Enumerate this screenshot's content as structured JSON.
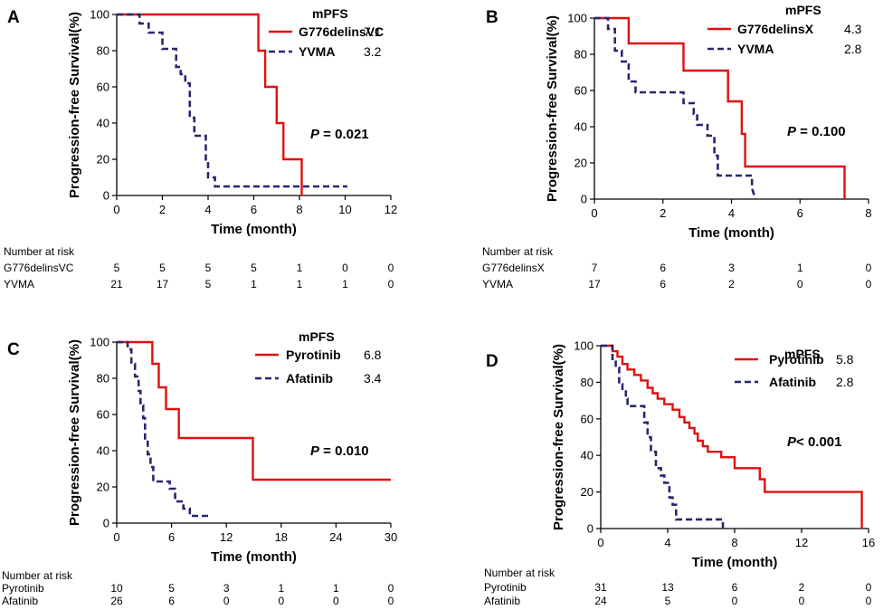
{
  "colors": {
    "red": "#e01010",
    "navy": "#27276e",
    "axis": "#000000"
  },
  "chart_data": [
    {
      "type": "line",
      "panel_label": "A",
      "xlabel": "Time (month)",
      "ylabel": "Progression-free Survival(%)",
      "xlim": [
        0,
        12
      ],
      "ylim": [
        0,
        100
      ],
      "xticks": [
        0,
        2,
        4,
        6,
        8,
        10,
        12
      ],
      "yticks": [
        0,
        20,
        40,
        60,
        80,
        100
      ],
      "legend_title": "mPFS",
      "pvalue_prefix": "P",
      "pvalue_text": " = 0.021",
      "series": [
        {
          "name": "G776delinsVC",
          "median": "7.1",
          "style": "solid",
          "color": "#e01010",
          "x": [
            0,
            6.2,
            6.2,
            6.5,
            6.5,
            7.0,
            7.0,
            7.3,
            7.3,
            8.1,
            8.1
          ],
          "y": [
            100,
            100,
            80,
            80,
            60,
            60,
            40,
            40,
            20,
            20,
            0
          ]
        },
        {
          "name": "YVMA",
          "median": "3.2",
          "style": "dashed",
          "color": "#27276e",
          "x": [
            0,
            1.0,
            1.0,
            1.4,
            1.4,
            2.0,
            2.0,
            2.6,
            2.6,
            2.8,
            2.8,
            3.0,
            3.0,
            3.2,
            3.2,
            3.4,
            3.4,
            3.9,
            3.9,
            4.0,
            4.0,
            4.3,
            4.3,
            4.6,
            4.6,
            10.1
          ],
          "y": [
            100,
            100,
            95,
            95,
            90,
            90,
            81,
            81,
            71,
            71,
            67,
            67,
            62,
            62,
            43,
            43,
            33,
            33,
            19,
            19,
            10,
            10,
            5,
            5,
            5,
            5
          ]
        }
      ],
      "risk_title": "Number at risk",
      "risk_rows": [
        {
          "name": "G776delinsVC",
          "values": [
            "5",
            "5",
            "5",
            "5",
            "1",
            "0",
            "0"
          ]
        },
        {
          "name": "YVMA",
          "values": [
            "21",
            "17",
            "5",
            "1",
            "1",
            "1",
            "0"
          ]
        }
      ]
    },
    {
      "type": "line",
      "panel_label": "B",
      "xlabel": "Time (month)",
      "ylabel": "Progression-free Survival(%)",
      "xlim": [
        0,
        8
      ],
      "ylim": [
        0,
        100
      ],
      "xticks": [
        0,
        2,
        4,
        6,
        8
      ],
      "yticks": [
        0,
        20,
        40,
        60,
        80,
        100
      ],
      "legend_title": "mPFS",
      "pvalue_prefix": "P",
      "pvalue_text": " = 0.100",
      "series": [
        {
          "name": "G776delinsX",
          "median": "4.3",
          "style": "solid",
          "color": "#e01010",
          "x": [
            0,
            1.0,
            1.0,
            2.6,
            2.6,
            3.9,
            3.9,
            4.3,
            4.3,
            4.4,
            4.4,
            7.3,
            7.3
          ],
          "y": [
            100,
            100,
            86,
            86,
            71,
            71,
            54,
            54,
            36,
            36,
            18,
            18,
            0
          ]
        },
        {
          "name": "YVMA",
          "median": "2.8",
          "style": "dashed",
          "color": "#27276e",
          "x": [
            0,
            0.4,
            0.4,
            0.6,
            0.6,
            0.8,
            0.8,
            1.0,
            1.0,
            1.2,
            1.2,
            2.6,
            2.6,
            2.9,
            2.9,
            3.0,
            3.0,
            3.3,
            3.3,
            3.5,
            3.5,
            3.6,
            3.6,
            4.6,
            4.6,
            4.7
          ],
          "y": [
            100,
            100,
            94,
            94,
            82,
            82,
            76,
            76,
            65,
            65,
            59,
            59,
            53,
            53,
            47,
            47,
            41,
            41,
            35,
            35,
            24,
            24,
            13,
            13,
            6,
            0
          ]
        }
      ],
      "risk_title": "Number at risk",
      "risk_rows": [
        {
          "name": "G776delinsX",
          "values": [
            "7",
            "6",
            "3",
            "1",
            "0"
          ]
        },
        {
          "name": "YVMA",
          "values": [
            "17",
            "6",
            "2",
            "0",
            "0"
          ]
        }
      ]
    },
    {
      "type": "line",
      "panel_label": "C",
      "xlabel": "Time (month)",
      "ylabel": "Progression-free Survival(%)",
      "xlim": [
        0,
        30
      ],
      "ylim": [
        0,
        100
      ],
      "xticks": [
        0,
        6,
        12,
        18,
        24,
        30
      ],
      "yticks": [
        0,
        20,
        40,
        60,
        80,
        100
      ],
      "legend_title": "mPFS",
      "pvalue_prefix": "P",
      "pvalue_text": " = 0.010",
      "series": [
        {
          "name": "Pyrotinib",
          "median": "6.8",
          "style": "solid",
          "color": "#e01010",
          "x": [
            0,
            3.9,
            3.9,
            4.6,
            4.6,
            5.4,
            5.4,
            6.8,
            6.8,
            14.9,
            14.9,
            30
          ],
          "y": [
            100,
            100,
            88,
            88,
            75,
            75,
            63,
            63,
            47,
            47,
            24,
            24
          ]
        },
        {
          "name": "Afatinib",
          "median": "3.4",
          "style": "dashed",
          "color": "#27276e",
          "x": [
            0,
            1.2,
            1.2,
            1.6,
            1.6,
            2.0,
            2.0,
            2.4,
            2.4,
            2.6,
            2.6,
            2.9,
            2.9,
            3.1,
            3.1,
            3.4,
            3.4,
            3.7,
            3.7,
            4.0,
            4.0,
            5.8,
            5.8,
            6.4,
            6.4,
            7.3,
            7.3,
            8.0,
            8.0,
            10.0
          ],
          "y": [
            100,
            100,
            96,
            96,
            88,
            88,
            81,
            81,
            73,
            73,
            65,
            65,
            58,
            58,
            46,
            46,
            38,
            38,
            31,
            31,
            23,
            23,
            19,
            19,
            12,
            12,
            8,
            8,
            4,
            4
          ]
        }
      ],
      "risk_title": "Number at risk",
      "risk_rows": [
        {
          "name": "Pyrotinib",
          "values": [
            "10",
            "5",
            "3",
            "1",
            "1",
            "0"
          ]
        },
        {
          "name": "Afatinib",
          "values": [
            "26",
            "6",
            "0",
            "0",
            "0",
            "0"
          ]
        }
      ]
    },
    {
      "type": "line",
      "panel_label": "D",
      "xlabel": "Time (month)",
      "ylabel": "Progression-free Survival(%)",
      "xlim": [
        0,
        16
      ],
      "ylim": [
        0,
        100
      ],
      "xticks": [
        0,
        4,
        8,
        12,
        16
      ],
      "yticks": [
        0,
        20,
        40,
        60,
        80,
        100
      ],
      "legend_title": "mPFS",
      "pvalue_prefix": "P",
      "pvalue_text": "< 0.001",
      "series": [
        {
          "name": "Pyrotinib",
          "median": "5.8",
          "style": "solid",
          "color": "#e01010",
          "x": [
            0,
            0.7,
            0.7,
            1.0,
            1.0,
            1.3,
            1.3,
            1.6,
            1.6,
            2.0,
            2.0,
            2.4,
            2.4,
            2.8,
            2.8,
            3.1,
            3.1,
            3.4,
            3.4,
            3.8,
            3.8,
            4.3,
            4.3,
            4.7,
            4.7,
            5.0,
            5.0,
            5.3,
            5.3,
            5.6,
            5.6,
            5.8,
            5.8,
            6.1,
            6.1,
            6.4,
            6.4,
            7.2,
            7.2,
            8.0,
            8.0,
            9.5,
            9.5,
            9.8,
            9.8,
            15.6,
            15.6
          ],
          "y": [
            100,
            100,
            97,
            97,
            94,
            94,
            90,
            90,
            87,
            87,
            84,
            84,
            81,
            81,
            77,
            77,
            74,
            74,
            71,
            71,
            68,
            68,
            65,
            65,
            61,
            61,
            58,
            58,
            55,
            55,
            52,
            52,
            48,
            48,
            45,
            45,
            42,
            42,
            39,
            39,
            33,
            33,
            27,
            27,
            20,
            20,
            0
          ]
        },
        {
          "name": "Afatinib",
          "median": "2.8",
          "style": "dashed",
          "color": "#27276e",
          "x": [
            0,
            0.7,
            0.7,
            0.9,
            0.9,
            1.1,
            1.1,
            1.3,
            1.3,
            1.5,
            1.5,
            1.6,
            1.6,
            2.6,
            2.6,
            2.8,
            2.8,
            3.0,
            3.0,
            3.3,
            3.3,
            3.6,
            3.6,
            3.8,
            3.8,
            4.1,
            4.1,
            4.3,
            4.3,
            4.5,
            4.5,
            4.8,
            4.8,
            7.3,
            7.3
          ],
          "y": [
            100,
            100,
            92,
            92,
            88,
            88,
            79,
            79,
            75,
            75,
            71,
            71,
            67,
            67,
            58,
            58,
            50,
            50,
            42,
            42,
            33,
            33,
            29,
            29,
            25,
            25,
            17,
            17,
            13,
            13,
            5,
            5,
            5,
            5,
            0
          ]
        }
      ],
      "risk_title": "Number at risk",
      "risk_rows": [
        {
          "name": "Pyrotinib",
          "values": [
            "31",
            "13",
            "6",
            "2",
            "0"
          ]
        },
        {
          "name": "Afatinib",
          "values": [
            "24",
            "5",
            "0",
            "0",
            "0"
          ]
        }
      ]
    }
  ]
}
